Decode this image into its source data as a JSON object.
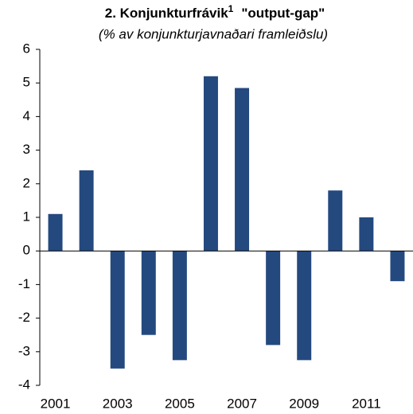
{
  "chart_data": {
    "type": "bar",
    "title": "2. Konjunkturfrávik",
    "title_superscript": "1",
    "title_suffix": "\"output-gap\"",
    "subtitle": "(% av konjunkturjavnaðari framleiðslu)",
    "categories": [
      "2001",
      null,
      "2003",
      null,
      "2005",
      null,
      "2007",
      null,
      "2009",
      null,
      "2011",
      null
    ],
    "values": [
      1.1,
      2.4,
      -3.5,
      -2.5,
      -3.25,
      5.2,
      4.85,
      -2.8,
      -3.25,
      1.8,
      1.0,
      -0.9
    ],
    "color": "#24497f",
    "ylim": [
      -4,
      6
    ],
    "yticks": [
      -4,
      -3,
      -2,
      -1,
      0,
      1,
      2,
      3,
      4,
      5,
      6
    ],
    "grid": false
  }
}
